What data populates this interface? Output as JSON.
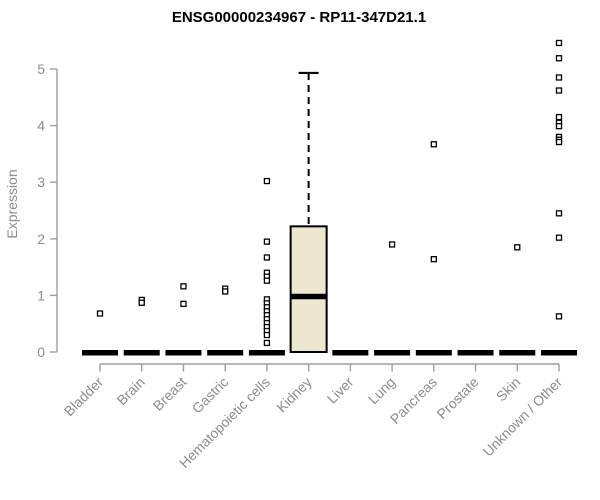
{
  "chart_data": {
    "type": "boxplot",
    "title": "ENSG00000234967 - RP11-347D21.1",
    "ylabel": "Expression",
    "xlabel": "",
    "ylim": [
      0,
      5.5
    ],
    "yticks": [
      0,
      1,
      2,
      3,
      4,
      5
    ],
    "grid": false,
    "legend": "none",
    "categories": [
      "Bladder",
      "Brain",
      "Breast",
      "Gastric",
      "Hematopoietic cells",
      "Kidney",
      "Liver",
      "Lung",
      "Pancreas",
      "Prostate",
      "Skin",
      "Unknown / Other"
    ],
    "series": [
      {
        "label": "Bladder",
        "q1": 0,
        "median": 0,
        "q3": 0,
        "whisker_low": 0,
        "whisker_high": 0,
        "outliers": [
          0.68
        ]
      },
      {
        "label": "Brain",
        "q1": 0,
        "median": 0,
        "q3": 0,
        "whisker_low": 0,
        "whisker_high": 0,
        "outliers": [
          0.92,
          0.87
        ]
      },
      {
        "label": "Breast",
        "q1": 0,
        "median": 0,
        "q3": 0,
        "whisker_low": 0,
        "whisker_high": 0,
        "outliers": [
          1.16,
          0.85
        ]
      },
      {
        "label": "Gastric",
        "q1": 0,
        "median": 0,
        "q3": 0,
        "whisker_low": 0,
        "whisker_high": 0,
        "outliers": [
          1.12,
          1.07
        ]
      },
      {
        "label": "Hematopoietic cells",
        "q1": 0,
        "median": 0,
        "q3": 0,
        "whisker_low": 0,
        "whisker_high": 0,
        "outliers": [
          3.02,
          1.95,
          1.67,
          1.4,
          1.33,
          1.26,
          0.93,
          0.86,
          0.79,
          0.72,
          0.65,
          0.58,
          0.51,
          0.44,
          0.37,
          0.3,
          0.16
        ]
      },
      {
        "label": "Kidney",
        "q1": 0,
        "median": 0.98,
        "q3": 2.22,
        "whisker_low": 0,
        "whisker_high": 4.93,
        "outliers": []
      },
      {
        "label": "Liver",
        "q1": 0,
        "median": 0,
        "q3": 0,
        "whisker_low": 0,
        "whisker_high": 0,
        "outliers": []
      },
      {
        "label": "Lung",
        "q1": 0,
        "median": 0,
        "q3": 0,
        "whisker_low": 0,
        "whisker_high": 0,
        "outliers": [
          1.9
        ]
      },
      {
        "label": "Pancreas",
        "q1": 0,
        "median": 0,
        "q3": 0,
        "whisker_low": 0,
        "whisker_high": 0,
        "outliers": [
          3.67,
          1.64
        ]
      },
      {
        "label": "Prostate",
        "q1": 0,
        "median": 0,
        "q3": 0,
        "whisker_low": 0,
        "whisker_high": 0,
        "outliers": []
      },
      {
        "label": "Skin",
        "q1": 0,
        "median": 0,
        "q3": 0,
        "whisker_low": 0,
        "whisker_high": 0,
        "outliers": [
          1.85
        ]
      },
      {
        "label": "Unknown / Other",
        "q1": 0,
        "median": 0,
        "q3": 0,
        "whisker_low": 0,
        "whisker_high": 0,
        "outliers": [
          5.46,
          5.19,
          4.85,
          4.62,
          4.15,
          4.05,
          3.99,
          3.8,
          3.75,
          3.71,
          2.45,
          2.02,
          0.63
        ]
      }
    ],
    "colors": {
      "box_fill": "#ede7cf",
      "data_stroke": "#000000",
      "point_fill": "#ffffff",
      "axis_line": "#9e9e9e",
      "tick_text": "#8c8c8c",
      "title_text": "#000000"
    }
  }
}
